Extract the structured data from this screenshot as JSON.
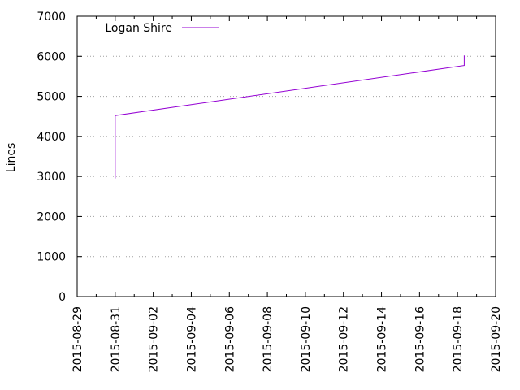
{
  "chart_data": {
    "type": "line",
    "title": "",
    "xlabel": "",
    "ylabel": "Lines",
    "x_axis": "date",
    "xlim": [
      "2015-08-29",
      "2015-09-20"
    ],
    "ylim": [
      0,
      7000
    ],
    "y_ticks": [
      0,
      1000,
      2000,
      3000,
      4000,
      5000,
      6000,
      7000
    ],
    "x_tick_labels": [
      "2015-08-29",
      "2015-08-31",
      "2015-09-02",
      "2015-09-04",
      "2015-09-06",
      "2015-09-08",
      "2015-09-10",
      "2015-09-12",
      "2015-09-14",
      "2015-09-16",
      "2015-09-18",
      "2015-09-20"
    ],
    "grid": "horizontal-dotted",
    "legend_position": "top-left",
    "series": [
      {
        "name": "Logan Shire",
        "color": "#9400d3",
        "x": [
          "2015-08-31",
          "2015-08-31",
          "2015-09-18",
          "2015-09-18"
        ],
        "y": [
          2950,
          4520,
          5770,
          6020
        ]
      }
    ]
  }
}
